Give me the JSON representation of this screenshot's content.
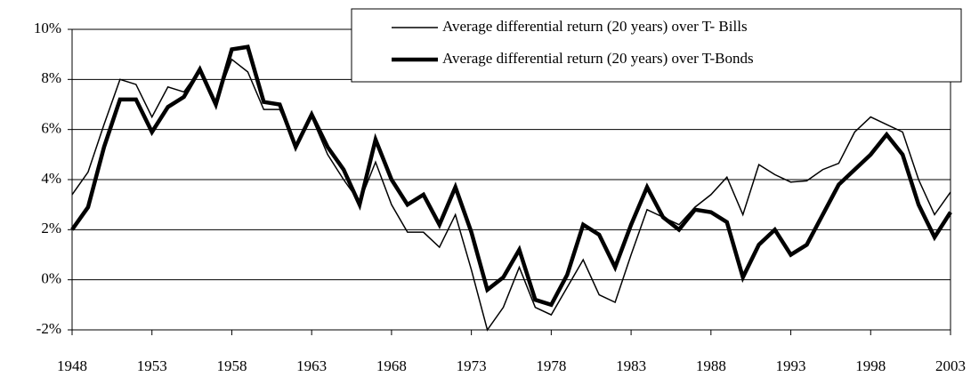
{
  "chart_data": {
    "type": "line",
    "x": [
      1948,
      1949,
      1950,
      1951,
      1952,
      1953,
      1954,
      1955,
      1956,
      1957,
      1958,
      1959,
      1960,
      1961,
      1962,
      1963,
      1964,
      1965,
      1966,
      1967,
      1968,
      1969,
      1970,
      1971,
      1972,
      1973,
      1974,
      1975,
      1976,
      1977,
      1978,
      1979,
      1980,
      1981,
      1982,
      1983,
      1984,
      1985,
      1986,
      1987,
      1988,
      1989,
      1990,
      1991,
      1992,
      1993,
      1994,
      1995,
      1996,
      1997,
      1998,
      1999,
      2000,
      2001,
      2002,
      2003
    ],
    "series": [
      {
        "name": "Average differential return (20 years) over T- Bills",
        "color": "#000000",
        "width": 1.5,
        "values": [
          3.4,
          4.3,
          6.2,
          8.0,
          7.8,
          6.5,
          7.7,
          7.5,
          8.4,
          7.1,
          8.8,
          8.3,
          6.8,
          6.8,
          5.4,
          6.5,
          5.0,
          4.0,
          3.1,
          4.7,
          3.0,
          1.9,
          1.9,
          1.3,
          2.6,
          0.4,
          -2.0,
          -1.1,
          0.5,
          -1.1,
          -1.4,
          -0.3,
          0.8,
          -0.6,
          -0.9,
          1.0,
          2.8,
          2.5,
          2.2,
          2.9,
          3.4,
          4.1,
          2.6,
          4.6,
          4.2,
          3.9,
          3.95,
          4.4,
          4.65,
          5.9,
          6.5,
          6.2,
          5.9,
          4.0,
          2.6,
          3.5
        ]
      },
      {
        "name": "Average differential return (20 years) over T-Bonds",
        "color": "#000000",
        "width": 4.5,
        "values": [
          2.0,
          2.9,
          5.3,
          7.2,
          7.2,
          5.9,
          6.9,
          7.3,
          8.4,
          7.0,
          9.2,
          9.3,
          7.1,
          7.0,
          5.3,
          6.6,
          5.3,
          4.4,
          3.0,
          5.6,
          4.0,
          3.0,
          3.4,
          2.2,
          3.7,
          1.9,
          -0.4,
          0.1,
          1.2,
          -0.8,
          -1.0,
          0.2,
          2.2,
          1.8,
          0.5,
          2.2,
          3.7,
          2.5,
          2.0,
          2.8,
          2.7,
          2.3,
          0.1,
          1.4,
          2.0,
          1.0,
          1.4,
          2.6,
          3.8,
          4.4,
          5.0,
          5.8,
          5.0,
          3.0,
          1.7,
          2.7
        ]
      }
    ],
    "xlim": [
      1948,
      2003
    ],
    "xticks": [
      1948,
      1953,
      1958,
      1963,
      1968,
      1973,
      1978,
      1983,
      1988,
      1993,
      1998,
      2003
    ],
    "ylim": [
      -2,
      10
    ],
    "yticks": [
      {
        "value": -2,
        "label": "-2%"
      },
      {
        "value": 0,
        "label": "0%"
      },
      {
        "value": 2,
        "label": "2%"
      },
      {
        "value": 4,
        "label": "4%"
      },
      {
        "value": 6,
        "label": "6%"
      },
      {
        "value": 8,
        "label": "8%"
      },
      {
        "value": 10,
        "label": "10%"
      }
    ],
    "grid": true,
    "legend": "top-right"
  }
}
